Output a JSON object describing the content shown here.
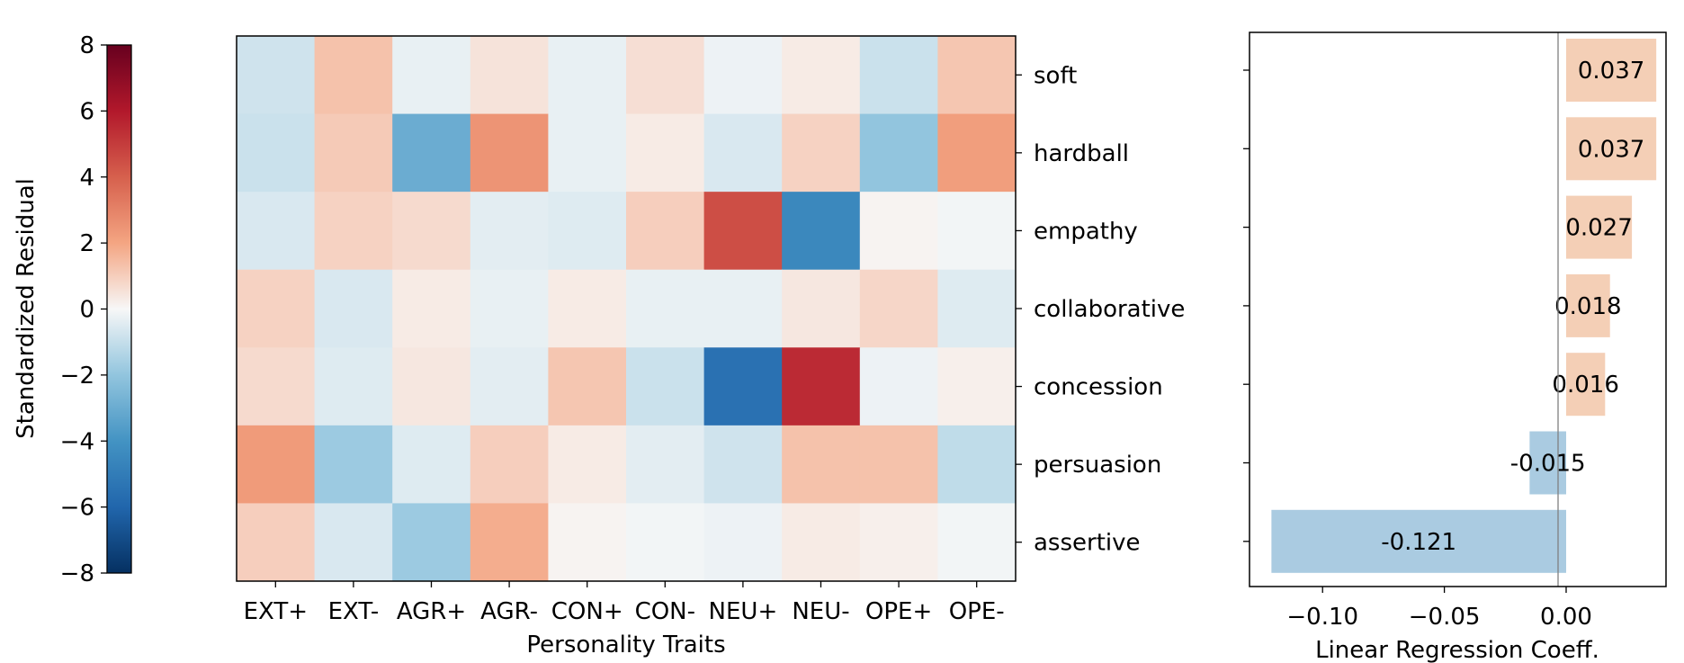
{
  "chart_data": [
    {
      "type": "heatmap",
      "xlabel": "Personality Traits",
      "x_categories": [
        "EXT+",
        "EXT-",
        "AGR+",
        "AGR-",
        "CON+",
        "CON-",
        "NEU+",
        "NEU-",
        "OPE+",
        "OPE-"
      ],
      "y_categories": [
        "soft",
        "hardball",
        "empathy",
        "collaborative",
        "concession",
        "persuasion",
        "assertive"
      ],
      "values": [
        [
          -0.8,
          1.3,
          -0.3,
          0.5,
          -0.3,
          0.6,
          -0.2,
          0.3,
          -0.9,
          1.2
        ],
        [
          -0.9,
          1.1,
          -3.0,
          2.5,
          -0.3,
          0.3,
          -0.6,
          0.9,
          -2.0,
          2.2
        ],
        [
          -0.6,
          0.9,
          0.7,
          -0.4,
          -0.5,
          1.0,
          4.5,
          -4.5,
          0.1,
          -0.1
        ],
        [
          0.9,
          -0.6,
          0.3,
          -0.3,
          0.3,
          -0.3,
          -0.3,
          0.4,
          0.8,
          -0.5
        ],
        [
          0.7,
          -0.5,
          0.4,
          -0.4,
          1.2,
          -0.9,
          -5.5,
          5.5,
          -0.2,
          0.2
        ],
        [
          2.3,
          -1.8,
          -0.5,
          1.0,
          0.3,
          -0.4,
          -0.8,
          1.3,
          1.3,
          -1.1
        ],
        [
          1.0,
          -0.6,
          -1.8,
          1.8,
          0.1,
          -0.1,
          -0.2,
          0.3,
          0.2,
          -0.1
        ]
      ],
      "colorbar": {
        "label": "Standardized Residual",
        "range": [
          -8,
          8
        ],
        "ticks": [
          8,
          6,
          4,
          2,
          0,
          -2,
          -4,
          -6,
          -8
        ],
        "tick_labels": [
          "8",
          "6",
          "4",
          "2",
          "0",
          "−2",
          "−4",
          "−6",
          "−8"
        ],
        "colormap": "RdBu_r"
      }
    },
    {
      "type": "bar",
      "orientation": "horizontal",
      "xlabel": "Linear Regression Coeff.",
      "categories": [
        "soft",
        "hardball",
        "empathy",
        "collaborative",
        "concession",
        "persuasion",
        "assertive"
      ],
      "values": [
        0.037,
        0.037,
        0.027,
        0.018,
        0.016,
        -0.015,
        -0.121
      ],
      "value_labels": [
        "0.037",
        "0.037",
        "0.027",
        "0.018",
        "0.016",
        "-0.015",
        "-0.121"
      ],
      "xlim": [
        -0.13,
        0.041
      ],
      "xticks": [
        -0.1,
        -0.05,
        0.0
      ],
      "xtick_labels": [
        "−0.10",
        "−0.05",
        "0.00"
      ],
      "colors": {
        "positive": "#f4cfb6",
        "negative": "#aacbe1",
        "zero_line": "#808080"
      }
    }
  ]
}
